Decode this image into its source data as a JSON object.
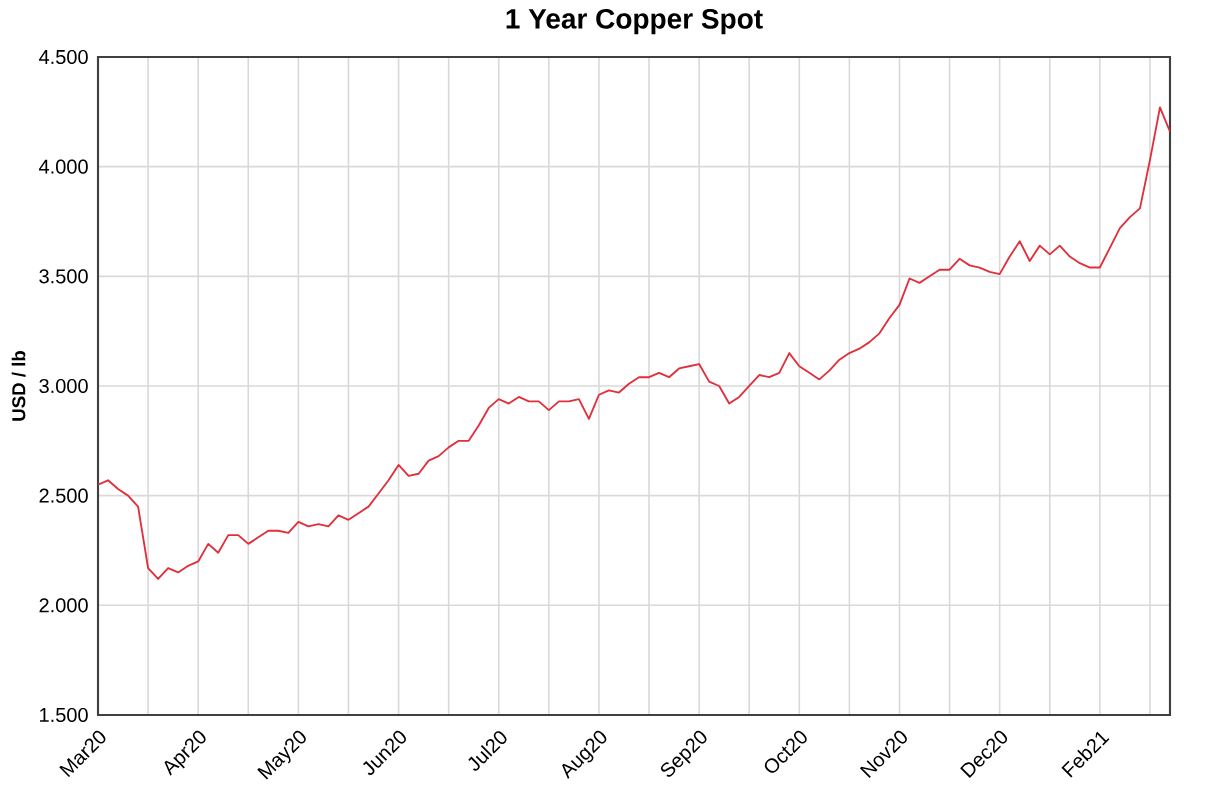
{
  "chart_data": {
    "type": "line",
    "title": "1 Year Copper Spot",
    "ylabel": "USD / lb",
    "categories": [
      "Mar20",
      null,
      null,
      null,
      null,
      null,
      null,
      null,
      null,
      null,
      "Apr20",
      null,
      null,
      null,
      null,
      null,
      null,
      null,
      null,
      null,
      "May20",
      null,
      null,
      null,
      null,
      null,
      null,
      null,
      null,
      null,
      "Jun20",
      null,
      null,
      null,
      null,
      null,
      null,
      null,
      null,
      null,
      "Jul20",
      null,
      null,
      null,
      null,
      null,
      null,
      null,
      null,
      null,
      "Aug20",
      null,
      null,
      null,
      null,
      null,
      null,
      null,
      null,
      null,
      "Sep20",
      null,
      null,
      null,
      null,
      null,
      null,
      null,
      null,
      null,
      "Oct20",
      null,
      null,
      null,
      null,
      null,
      null,
      null,
      null,
      null,
      "Nov20",
      null,
      null,
      null,
      null,
      null,
      null,
      null,
      null,
      null,
      "Dec20",
      null,
      null,
      null,
      null,
      null,
      null,
      null,
      null,
      null,
      "Feb21",
      null,
      null,
      null,
      null,
      null,
      null,
      null
    ],
    "series": [
      {
        "color": "#e0303c",
        "values": [
          2.55,
          2.57,
          2.53,
          2.5,
          2.45,
          2.17,
          2.12,
          2.17,
          2.15,
          2.18,
          2.2,
          2.28,
          2.24,
          2.32,
          2.32,
          2.28,
          2.31,
          2.34,
          2.34,
          2.33,
          2.38,
          2.36,
          2.37,
          2.36,
          2.41,
          2.39,
          2.42,
          2.45,
          2.51,
          2.57,
          2.64,
          2.59,
          2.6,
          2.66,
          2.68,
          2.72,
          2.75,
          2.75,
          2.82,
          2.9,
          2.94,
          2.92,
          2.95,
          2.93,
          2.93,
          2.89,
          2.93,
          2.93,
          2.94,
          2.85,
          2.96,
          2.98,
          2.97,
          3.01,
          3.04,
          3.04,
          3.06,
          3.04,
          3.08,
          3.09,
          3.1,
          3.02,
          3.0,
          2.92,
          2.95,
          3.0,
          3.05,
          3.04,
          3.06,
          3.15,
          3.09,
          3.06,
          3.03,
          3.07,
          3.12,
          3.15,
          3.17,
          3.2,
          3.24,
          3.31,
          3.37,
          3.49,
          3.47,
          3.5,
          3.53,
          3.53,
          3.58,
          3.55,
          3.54,
          3.52,
          3.51,
          3.59,
          3.66,
          3.57,
          3.64,
          3.6,
          3.64,
          3.59,
          3.56,
          3.54,
          3.54,
          3.63,
          3.72,
          3.77,
          3.81,
          4.03,
          4.27,
          4.16
        ]
      }
    ],
    "ylim": [
      1.5,
      4.5
    ],
    "yticks": [
      {
        "value": 1.5,
        "label": "1.500"
      },
      {
        "value": 2,
        "label": "2.000"
      },
      {
        "value": 2.5,
        "label": "2.500"
      },
      {
        "value": 3,
        "label": "3.000"
      },
      {
        "value": 3.5,
        "label": "3.500"
      },
      {
        "value": 4,
        "label": "4.000"
      },
      {
        "value": 4.5,
        "label": "4.500"
      }
    ],
    "grid": true,
    "marker": "none",
    "line_style": "solid"
  }
}
